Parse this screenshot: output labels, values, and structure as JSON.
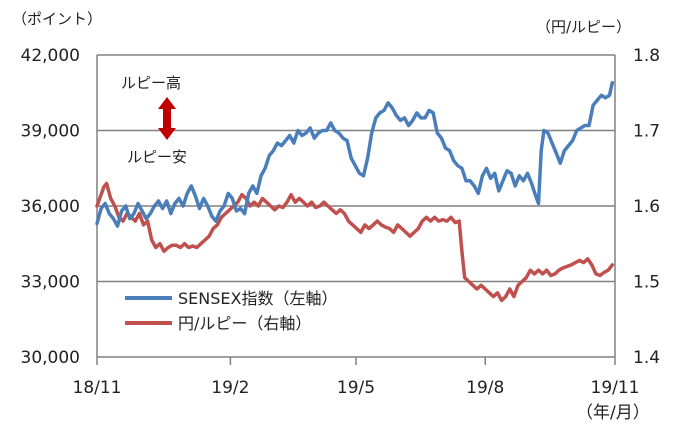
{
  "chart_data": {
    "type": "line",
    "left_axis": {
      "unit": "（ポイント）",
      "ticks": [
        "42,000",
        "39,000",
        "36,000",
        "33,000",
        "30,000"
      ],
      "ylim": [
        30000,
        42000
      ]
    },
    "right_axis": {
      "unit": "（円/ルピー）",
      "ticks": [
        "1.8",
        "1.7",
        "1.6",
        "1.5",
        "1.4"
      ],
      "ylim": [
        1.4,
        1.8
      ]
    },
    "x_axis": {
      "ticks": [
        "18/11",
        "19/2",
        "19/5",
        "19/8",
        "19/11"
      ],
      "unit": "（年/月）",
      "xlim": [
        "2018-11-01",
        "2019-11-15"
      ]
    },
    "annotations": {
      "up": "ルピー高",
      "down": "ルピー安"
    },
    "series": [
      {
        "name": "SENSEX指数（左軸）",
        "axis": "left",
        "color": "#4a7ebb",
        "points": [
          [
            "2018-11-01",
            35300
          ],
          [
            "2018-11-04",
            35900
          ],
          [
            "2018-11-07",
            36100
          ],
          [
            "2018-11-10",
            35700
          ],
          [
            "2018-11-13",
            35500
          ],
          [
            "2018-11-16",
            35200
          ],
          [
            "2018-11-19",
            35800
          ],
          [
            "2018-11-22",
            36000
          ],
          [
            "2018-11-25",
            35500
          ],
          [
            "2018-11-28",
            35700
          ],
          [
            "2018-12-01",
            36100
          ],
          [
            "2018-12-04",
            35800
          ],
          [
            "2018-12-07",
            35500
          ],
          [
            "2018-12-10",
            35700
          ],
          [
            "2018-12-13",
            36000
          ],
          [
            "2018-12-16",
            36200
          ],
          [
            "2018-12-19",
            35900
          ],
          [
            "2018-12-22",
            36200
          ],
          [
            "2018-12-25",
            35700
          ],
          [
            "2018-12-28",
            36100
          ],
          [
            "2018-12-31",
            36300
          ],
          [
            "2019-01-03",
            36000
          ],
          [
            "2019-01-06",
            36500
          ],
          [
            "2019-01-09",
            36800
          ],
          [
            "2019-01-12",
            36400
          ],
          [
            "2019-01-15",
            35900
          ],
          [
            "2019-01-18",
            36300
          ],
          [
            "2019-01-21",
            36000
          ],
          [
            "2019-01-24",
            35600
          ],
          [
            "2019-01-27",
            35400
          ],
          [
            "2019-01-30",
            35800
          ],
          [
            "2019-02-02",
            36000
          ],
          [
            "2019-02-05",
            36500
          ],
          [
            "2019-02-08",
            36300
          ],
          [
            "2019-02-11",
            35800
          ],
          [
            "2019-02-14",
            35900
          ],
          [
            "2019-02-17",
            35700
          ],
          [
            "2019-02-20",
            36500
          ],
          [
            "2019-02-23",
            36800
          ],
          [
            "2019-02-26",
            36500
          ],
          [
            "2019-03-01",
            37200
          ],
          [
            "2019-03-04",
            37500
          ],
          [
            "2019-03-07",
            38000
          ],
          [
            "2019-03-10",
            38200
          ],
          [
            "2019-03-13",
            38500
          ],
          [
            "2019-03-16",
            38400
          ],
          [
            "2019-03-19",
            38600
          ],
          [
            "2019-03-22",
            38800
          ],
          [
            "2019-03-25",
            38500
          ],
          [
            "2019-03-28",
            39000
          ],
          [
            "2019-03-31",
            38800
          ],
          [
            "2019-04-03",
            38900
          ],
          [
            "2019-04-06",
            39100
          ],
          [
            "2019-04-09",
            38700
          ],
          [
            "2019-04-12",
            38900
          ],
          [
            "2019-04-15",
            39000
          ],
          [
            "2019-04-18",
            39000
          ],
          [
            "2019-04-21",
            39300
          ],
          [
            "2019-04-24",
            39000
          ],
          [
            "2019-04-27",
            38900
          ],
          [
            "2019-04-30",
            38700
          ],
          [
            "2019-05-03",
            38600
          ],
          [
            "2019-05-06",
            37900
          ],
          [
            "2019-05-09",
            37600
          ],
          [
            "2019-05-12",
            37300
          ],
          [
            "2019-05-15",
            37200
          ],
          [
            "2019-05-18",
            37900
          ],
          [
            "2019-05-21",
            38900
          ],
          [
            "2019-05-24",
            39500
          ],
          [
            "2019-05-27",
            39700
          ],
          [
            "2019-05-30",
            39800
          ],
          [
            "2019-06-02",
            40100
          ],
          [
            "2019-06-05",
            39900
          ],
          [
            "2019-06-08",
            39600
          ],
          [
            "2019-06-11",
            39400
          ],
          [
            "2019-06-14",
            39500
          ],
          [
            "2019-06-17",
            39200
          ],
          [
            "2019-06-20",
            39400
          ],
          [
            "2019-06-23",
            39700
          ],
          [
            "2019-06-26",
            39500
          ],
          [
            "2019-06-29",
            39500
          ],
          [
            "2019-07-02",
            39800
          ],
          [
            "2019-07-05",
            39700
          ],
          [
            "2019-07-08",
            38900
          ],
          [
            "2019-07-11",
            38700
          ],
          [
            "2019-07-14",
            38300
          ],
          [
            "2019-07-17",
            38200
          ],
          [
            "2019-07-20",
            37800
          ],
          [
            "2019-07-23",
            37600
          ],
          [
            "2019-07-26",
            37500
          ],
          [
            "2019-07-29",
            37000
          ],
          [
            "2019-08-01",
            37000
          ],
          [
            "2019-08-04",
            36800
          ],
          [
            "2019-08-07",
            36500
          ],
          [
            "2019-08-10",
            37200
          ],
          [
            "2019-08-13",
            37500
          ],
          [
            "2019-08-16",
            37100
          ],
          [
            "2019-08-19",
            37300
          ],
          [
            "2019-08-22",
            36600
          ],
          [
            "2019-08-25",
            37000
          ],
          [
            "2019-08-28",
            37400
          ],
          [
            "2019-08-31",
            37300
          ],
          [
            "2019-09-03",
            36800
          ],
          [
            "2019-09-06",
            37200
          ],
          [
            "2019-09-09",
            37000
          ],
          [
            "2019-09-12",
            37300
          ],
          [
            "2019-09-15",
            36900
          ],
          [
            "2019-09-18",
            36400
          ],
          [
            "2019-09-20",
            36100
          ],
          [
            "2019-09-22",
            38200
          ],
          [
            "2019-09-24",
            39000
          ],
          [
            "2019-09-27",
            38900
          ],
          [
            "2019-09-30",
            38500
          ],
          [
            "2019-10-03",
            38100
          ],
          [
            "2019-10-06",
            37700
          ],
          [
            "2019-10-09",
            38200
          ],
          [
            "2019-10-12",
            38400
          ],
          [
            "2019-10-15",
            38600
          ],
          [
            "2019-10-18",
            39000
          ],
          [
            "2019-10-21",
            39100
          ],
          [
            "2019-10-24",
            39200
          ],
          [
            "2019-10-27",
            39200
          ],
          [
            "2019-10-30",
            40000
          ],
          [
            "2019-11-02",
            40200
          ],
          [
            "2019-11-05",
            40400
          ],
          [
            "2019-11-08",
            40300
          ],
          [
            "2019-11-11",
            40400
          ],
          [
            "2019-11-13",
            40900
          ]
        ]
      },
      {
        "name": "円/ルピー（右軸）",
        "axis": "right",
        "color": "#c0504d",
        "points": [
          [
            "2018-11-01",
            1.6
          ],
          [
            "2018-11-03",
            1.61
          ],
          [
            "2018-11-06",
            1.625
          ],
          [
            "2018-11-08",
            1.63
          ],
          [
            "2018-11-11",
            1.61
          ],
          [
            "2018-11-14",
            1.6
          ],
          [
            "2018-11-17",
            1.585
          ],
          [
            "2018-11-20",
            1.58
          ],
          [
            "2018-11-23",
            1.59
          ],
          [
            "2018-11-26",
            1.585
          ],
          [
            "2018-11-29",
            1.58
          ],
          [
            "2018-12-02",
            1.59
          ],
          [
            "2018-12-05",
            1.575
          ],
          [
            "2018-12-08",
            1.58
          ],
          [
            "2018-12-11",
            1.555
          ],
          [
            "2018-12-14",
            1.545
          ],
          [
            "2018-12-17",
            1.55
          ],
          [
            "2018-12-20",
            1.54
          ],
          [
            "2018-12-23",
            1.545
          ],
          [
            "2018-12-26",
            1.548
          ],
          [
            "2018-12-29",
            1.548
          ],
          [
            "2019-01-01",
            1.545
          ],
          [
            "2019-01-04",
            1.55
          ],
          [
            "2019-01-07",
            1.545
          ],
          [
            "2019-01-10",
            1.547
          ],
          [
            "2019-01-13",
            1.545
          ],
          [
            "2019-01-16",
            1.55
          ],
          [
            "2019-01-19",
            1.555
          ],
          [
            "2019-01-22",
            1.56
          ],
          [
            "2019-01-25",
            1.57
          ],
          [
            "2019-01-28",
            1.575
          ],
          [
            "2019-01-31",
            1.585
          ],
          [
            "2019-02-03",
            1.59
          ],
          [
            "2019-02-06",
            1.595
          ],
          [
            "2019-02-09",
            1.6
          ],
          [
            "2019-02-12",
            1.605
          ],
          [
            "2019-02-15",
            1.615
          ],
          [
            "2019-02-18",
            1.61
          ],
          [
            "2019-02-21",
            1.6
          ],
          [
            "2019-02-24",
            1.605
          ],
          [
            "2019-02-27",
            1.6
          ],
          [
            "2019-03-02",
            1.61
          ],
          [
            "2019-03-05",
            1.605
          ],
          [
            "2019-03-08",
            1.6
          ],
          [
            "2019-03-11",
            1.595
          ],
          [
            "2019-03-14",
            1.6
          ],
          [
            "2019-03-17",
            1.598
          ],
          [
            "2019-03-20",
            1.605
          ],
          [
            "2019-03-23",
            1.615
          ],
          [
            "2019-03-26",
            1.605
          ],
          [
            "2019-03-29",
            1.61
          ],
          [
            "2019-04-01",
            1.605
          ],
          [
            "2019-04-04",
            1.6
          ],
          [
            "2019-04-07",
            1.605
          ],
          [
            "2019-04-10",
            1.598
          ],
          [
            "2019-04-13",
            1.6
          ],
          [
            "2019-04-16",
            1.605
          ],
          [
            "2019-04-19",
            1.6
          ],
          [
            "2019-04-22",
            1.595
          ],
          [
            "2019-04-25",
            1.59
          ],
          [
            "2019-04-28",
            1.595
          ],
          [
            "2019-05-01",
            1.59
          ],
          [
            "2019-05-04",
            1.58
          ],
          [
            "2019-05-07",
            1.575
          ],
          [
            "2019-05-10",
            1.57
          ],
          [
            "2019-05-13",
            1.565
          ],
          [
            "2019-05-16",
            1.575
          ],
          [
            "2019-05-19",
            1.57
          ],
          [
            "2019-05-22",
            1.575
          ],
          [
            "2019-05-25",
            1.58
          ],
          [
            "2019-05-28",
            1.575
          ],
          [
            "2019-05-31",
            1.572
          ],
          [
            "2019-06-03",
            1.57
          ],
          [
            "2019-06-06",
            1.565
          ],
          [
            "2019-06-09",
            1.575
          ],
          [
            "2019-06-12",
            1.57
          ],
          [
            "2019-06-15",
            1.565
          ],
          [
            "2019-06-18",
            1.56
          ],
          [
            "2019-06-21",
            1.565
          ],
          [
            "2019-06-24",
            1.57
          ],
          [
            "2019-06-27",
            1.58
          ],
          [
            "2019-06-30",
            1.585
          ],
          [
            "2019-07-03",
            1.58
          ],
          [
            "2019-07-06",
            1.585
          ],
          [
            "2019-07-09",
            1.58
          ],
          [
            "2019-07-12",
            1.582
          ],
          [
            "2019-07-15",
            1.58
          ],
          [
            "2019-07-18",
            1.585
          ],
          [
            "2019-07-21",
            1.578
          ],
          [
            "2019-07-24",
            1.58
          ],
          [
            "2019-07-26",
            1.54
          ],
          [
            "2019-07-28",
            1.505
          ],
          [
            "2019-07-31",
            1.5
          ],
          [
            "2019-08-03",
            1.495
          ],
          [
            "2019-08-06",
            1.49
          ],
          [
            "2019-08-09",
            1.495
          ],
          [
            "2019-08-12",
            1.49
          ],
          [
            "2019-08-15",
            1.485
          ],
          [
            "2019-08-18",
            1.48
          ],
          [
            "2019-08-21",
            1.485
          ],
          [
            "2019-08-24",
            1.475
          ],
          [
            "2019-08-27",
            1.48
          ],
          [
            "2019-08-30",
            1.49
          ],
          [
            "2019-09-02",
            1.48
          ],
          [
            "2019-09-05",
            1.495
          ],
          [
            "2019-09-08",
            1.5
          ],
          [
            "2019-09-11",
            1.505
          ],
          [
            "2019-09-14",
            1.515
          ],
          [
            "2019-09-17",
            1.51
          ],
          [
            "2019-09-20",
            1.515
          ],
          [
            "2019-09-23",
            1.51
          ],
          [
            "2019-09-26",
            1.515
          ],
          [
            "2019-09-29",
            1.508
          ],
          [
            "2019-10-02",
            1.51
          ],
          [
            "2019-10-05",
            1.515
          ],
          [
            "2019-10-08",
            1.518
          ],
          [
            "2019-10-11",
            1.52
          ],
          [
            "2019-10-14",
            1.522
          ],
          [
            "2019-10-17",
            1.525
          ],
          [
            "2019-10-20",
            1.528
          ],
          [
            "2019-10-23",
            1.525
          ],
          [
            "2019-10-26",
            1.53
          ],
          [
            "2019-10-29",
            1.522
          ],
          [
            "2019-11-01",
            1.51
          ],
          [
            "2019-11-04",
            1.508
          ],
          [
            "2019-11-07",
            1.512
          ],
          [
            "2019-11-10",
            1.515
          ],
          [
            "2019-11-13",
            1.522
          ]
        ]
      }
    ],
    "colors": {
      "arrow": "#c00000",
      "grid": "#808080"
    }
  }
}
